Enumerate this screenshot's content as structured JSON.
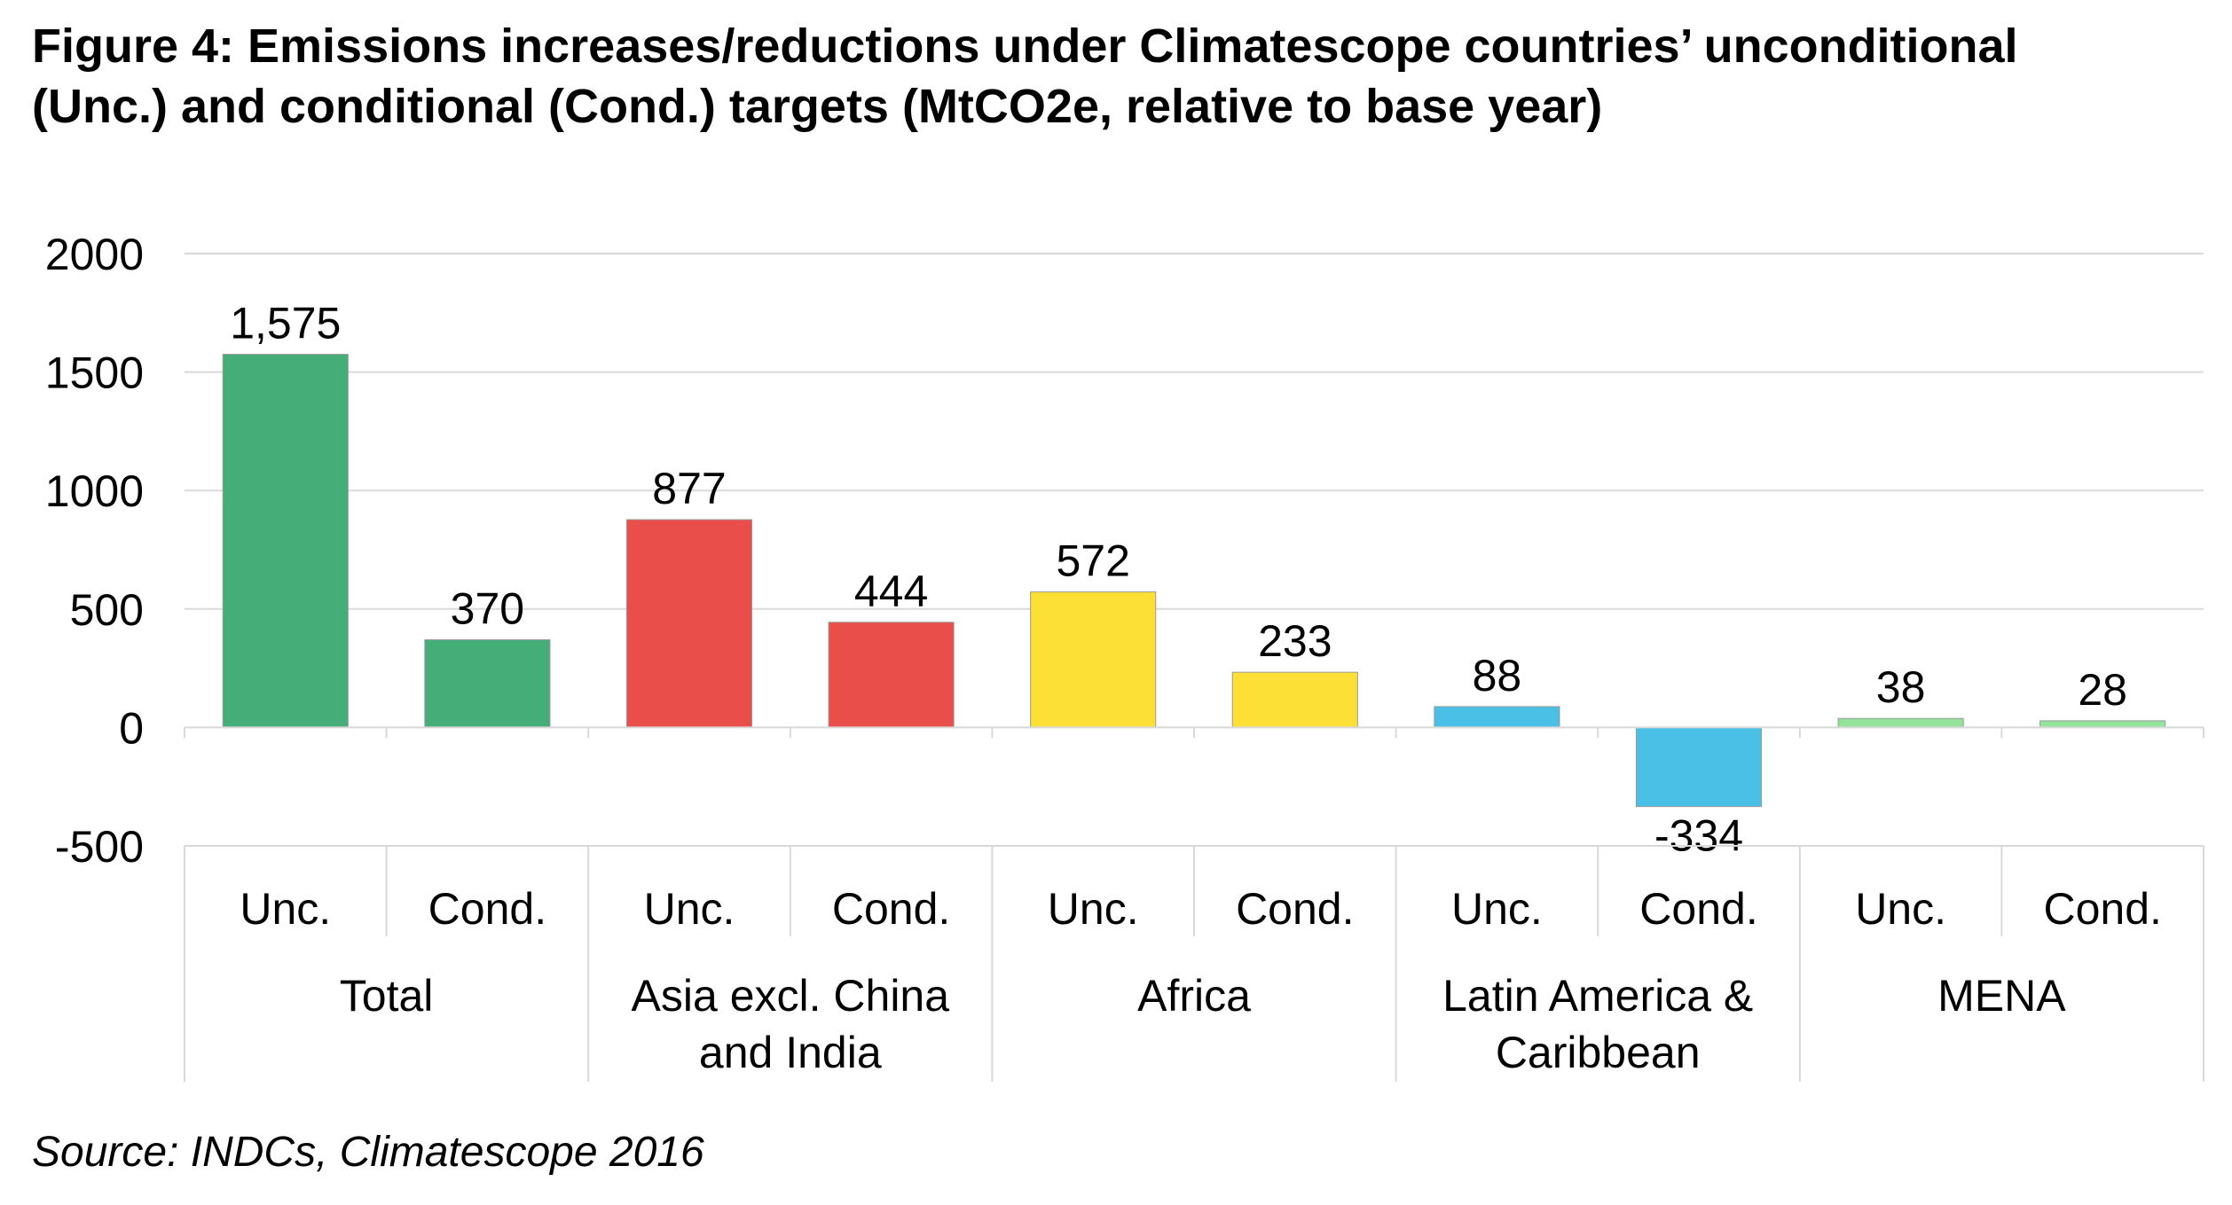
{
  "title_lines": [
    "Figure 4: Emissions increases/reductions under Climatescope countries’ unconditional",
    "(Unc.) and conditional (Cond.) targets (MtCO2e, relative to base year)"
  ],
  "source": "Source: INDCs, Climatescope 2016",
  "chart_data": {
    "type": "bar",
    "y_ticks": [
      "2000",
      "1500",
      "1000",
      "500",
      "0",
      "-500"
    ],
    "ylim": [
      -500,
      2000
    ],
    "grid": true,
    "groups": [
      {
        "name_lines": [
          "Total"
        ],
        "color": "#44AD78",
        "bars": [
          {
            "category": "Unc.",
            "value": 1575,
            "label": "1,575"
          },
          {
            "category": "Cond.",
            "value": 370,
            "label": "370"
          }
        ]
      },
      {
        "name_lines": [
          "Asia excl. China",
          "and India"
        ],
        "color": "#E94E4A",
        "bars": [
          {
            "category": "Unc.",
            "value": 877,
            "label": "877"
          },
          {
            "category": "Cond.",
            "value": 444,
            "label": "444"
          }
        ]
      },
      {
        "name_lines": [
          "Africa"
        ],
        "color": "#FDE035",
        "bars": [
          {
            "category": "Unc.",
            "value": 572,
            "label": "572"
          },
          {
            "category": "Cond.",
            "value": 233,
            "label": "233"
          }
        ]
      },
      {
        "name_lines": [
          "Latin America &",
          "Caribbean"
        ],
        "color": "#4BC0E7",
        "bars": [
          {
            "category": "Unc.",
            "value": 88,
            "label": "88"
          },
          {
            "category": "Cond.",
            "value": -334,
            "label": "-334"
          }
        ]
      },
      {
        "name_lines": [
          "MENA"
        ],
        "color": "#93E39B",
        "bars": [
          {
            "category": "Unc.",
            "value": 38,
            "label": "38"
          },
          {
            "category": "Cond.",
            "value": 28,
            "label": "28"
          }
        ]
      }
    ]
  }
}
